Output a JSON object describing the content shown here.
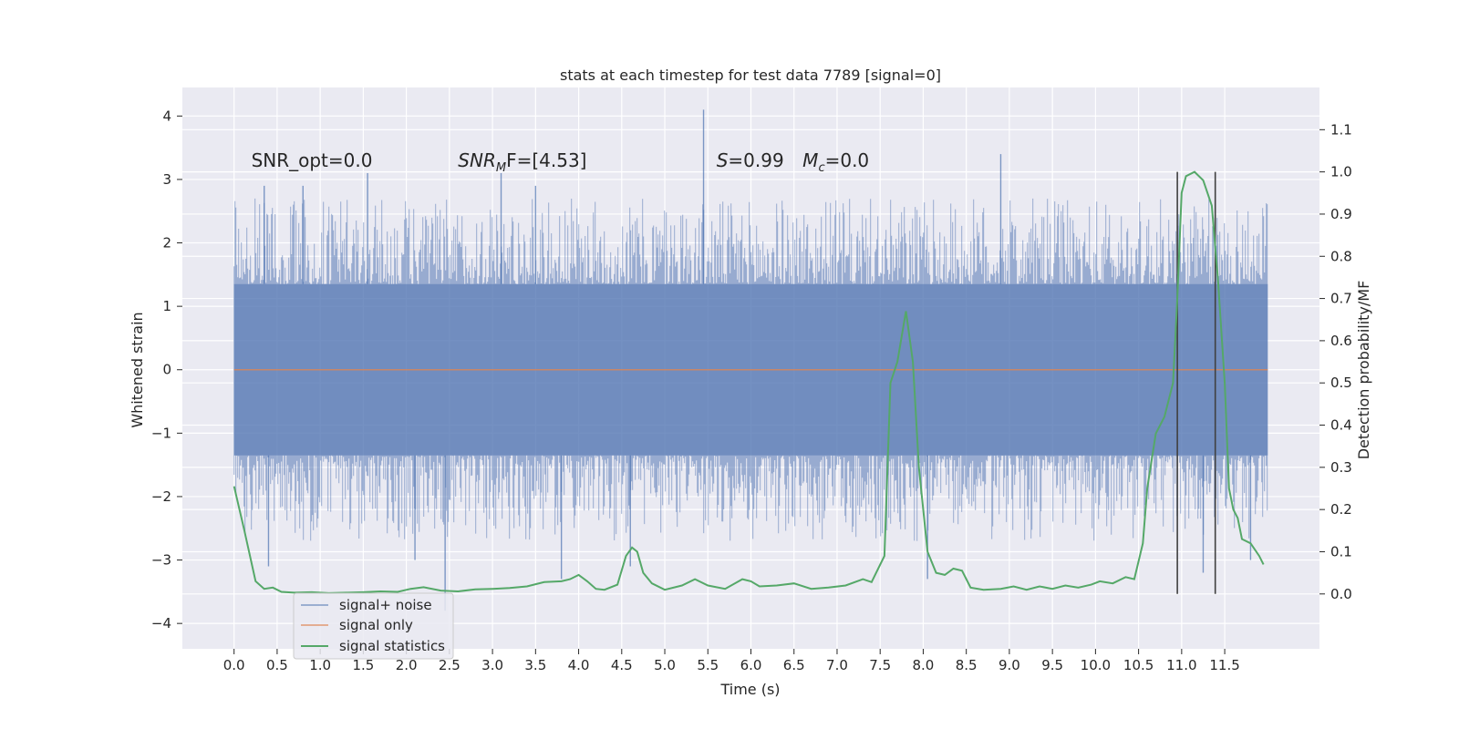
{
  "chart_data": {
    "type": "line",
    "title": "stats at each timestep for test data 7789 [signal=0]",
    "xlabel": "Time (s)",
    "ylabel": "Whitened strain",
    "y2label": "Detection probability/MF",
    "xlim": [
      -0.6,
      12.6
    ],
    "ylim": [
      -4.4,
      4.45
    ],
    "y2lim": [
      -0.13,
      1.2
    ],
    "xticks": [
      0.0,
      0.5,
      1.0,
      1.5,
      2.0,
      2.5,
      3.0,
      3.5,
      4.0,
      4.5,
      5.0,
      5.5,
      6.0,
      6.5,
      7.0,
      7.5,
      8.0,
      8.5,
      9.0,
      9.5,
      10.0,
      10.5,
      11.0,
      11.5
    ],
    "xtick_labels": [
      "0.0",
      "0.5",
      "1.0",
      "1.5",
      "2.0",
      "2.5",
      "3.0",
      "3.5",
      "4.0",
      "4.5",
      "5.0",
      "5.5",
      "6.0",
      "6.5",
      "7.0",
      "7.5",
      "8.0",
      "8.5",
      "9.0",
      "9.5",
      "10.0",
      "10.5",
      "11.0",
      "11.5"
    ],
    "yticks": [
      -4,
      -3,
      -2,
      -1,
      0,
      1,
      2,
      3,
      4
    ],
    "ytick_labels": [
      "−4",
      "−3",
      "−2",
      "−1",
      "0",
      "1",
      "2",
      "3",
      "4"
    ],
    "y2ticks": [
      0.0,
      0.1,
      0.2,
      0.3,
      0.4,
      0.5,
      0.6,
      0.7,
      0.8,
      0.9,
      1.0,
      1.1
    ],
    "y2tick_labels": [
      "0.0",
      "0.1",
      "0.2",
      "0.3",
      "0.4",
      "0.5",
      "0.6",
      "0.7",
      "0.8",
      "0.9",
      "1.0",
      "1.1"
    ],
    "grid": true,
    "legend_position": "lower-left",
    "series": [
      {
        "name": "signal+ noise",
        "color": "#4c72b0",
        "axis": "left",
        "x_range": [
          0.0,
          12.0
        ],
        "envelope_core": 1.35,
        "spikes": [
          {
            "x": 0.35,
            "y": 2.9
          },
          {
            "x": 0.8,
            "y": 2.9
          },
          {
            "x": 1.55,
            "y": 3.1
          },
          {
            "x": 3.1,
            "y": 3.1
          },
          {
            "x": 3.5,
            "y": 2.9
          },
          {
            "x": 5.45,
            "y": 4.1
          },
          {
            "x": 8.9,
            "y": 3.4
          },
          {
            "x": 0.4,
            "y": -3.1
          },
          {
            "x": 2.1,
            "y": -3.0
          },
          {
            "x": 2.45,
            "y": -3.8
          },
          {
            "x": 3.8,
            "y": -3.3
          },
          {
            "x": 4.6,
            "y": -3.1
          },
          {
            "x": 8.05,
            "y": -3.3
          },
          {
            "x": 11.25,
            "y": -3.2
          },
          {
            "x": 11.8,
            "y": -3.0
          }
        ]
      },
      {
        "name": "signal only",
        "color": "#dd8452",
        "axis": "left",
        "x": [
          0.0,
          12.0
        ],
        "y": [
          0.0,
          0.0
        ]
      },
      {
        "name": "signal statistics",
        "color": "#55a868",
        "axis": "right",
        "x": [
          0.0,
          0.12,
          0.25,
          0.35,
          0.45,
          0.55,
          0.7,
          0.9,
          1.1,
          1.3,
          1.5,
          1.7,
          1.9,
          2.05,
          2.2,
          2.4,
          2.6,
          2.8,
          3.0,
          3.2,
          3.4,
          3.6,
          3.8,
          3.9,
          4.0,
          4.1,
          4.2,
          4.3,
          4.45,
          4.55,
          4.62,
          4.68,
          4.75,
          4.85,
          5.0,
          5.2,
          5.35,
          5.5,
          5.7,
          5.9,
          6.0,
          6.1,
          6.3,
          6.5,
          6.7,
          6.9,
          7.1,
          7.3,
          7.4,
          7.55,
          7.62,
          7.7,
          7.8,
          7.88,
          7.95,
          8.05,
          8.15,
          8.25,
          8.35,
          8.45,
          8.55,
          8.7,
          8.9,
          9.05,
          9.2,
          9.35,
          9.5,
          9.65,
          9.8,
          9.95,
          10.05,
          10.2,
          10.35,
          10.45,
          10.55,
          10.6,
          10.7,
          10.8,
          10.9,
          10.95,
          11.0,
          11.05,
          11.15,
          11.25,
          11.35,
          11.42,
          11.5,
          11.55,
          11.6,
          11.65,
          11.7,
          11.8,
          11.9,
          11.95
        ],
        "y": [
          0.255,
          0.15,
          0.03,
          0.012,
          0.015,
          0.005,
          0.003,
          0.004,
          0.002,
          0.003,
          0.004,
          0.006,
          0.005,
          0.012,
          0.016,
          0.008,
          0.006,
          0.011,
          0.012,
          0.014,
          0.018,
          0.028,
          0.03,
          0.035,
          0.045,
          0.03,
          0.012,
          0.01,
          0.022,
          0.09,
          0.11,
          0.1,
          0.05,
          0.025,
          0.01,
          0.02,
          0.035,
          0.02,
          0.012,
          0.035,
          0.03,
          0.018,
          0.02,
          0.025,
          0.012,
          0.015,
          0.02,
          0.035,
          0.028,
          0.09,
          0.5,
          0.55,
          0.67,
          0.55,
          0.3,
          0.1,
          0.05,
          0.045,
          0.06,
          0.055,
          0.015,
          0.01,
          0.012,
          0.018,
          0.01,
          0.018,
          0.012,
          0.02,
          0.015,
          0.022,
          0.03,
          0.025,
          0.04,
          0.035,
          0.12,
          0.25,
          0.38,
          0.42,
          0.5,
          0.7,
          0.95,
          0.99,
          1.0,
          0.98,
          0.92,
          0.75,
          0.5,
          0.25,
          0.2,
          0.18,
          0.13,
          0.12,
          0.09,
          0.07
        ]
      }
    ],
    "vlines": [
      {
        "x": 10.95,
        "color": "#404040"
      },
      {
        "x": 11.39,
        "color": "#404040"
      }
    ],
    "annotations": [
      {
        "id": "snr_opt",
        "x": 0.2,
        "text": "SNR_opt=0.0"
      },
      {
        "id": "snr_mf",
        "x": 2.6,
        "text_main": "SNR",
        "text_sub": "M",
        "text_rest": "F=[4.53]"
      },
      {
        "id": "s_stat",
        "x": 5.6,
        "text_main": "S",
        "text_rest": "=0.99"
      },
      {
        "id": "mc",
        "x": 6.6,
        "text_main": "M",
        "text_sub": "c",
        "text_rest": "=0.0"
      }
    ]
  }
}
